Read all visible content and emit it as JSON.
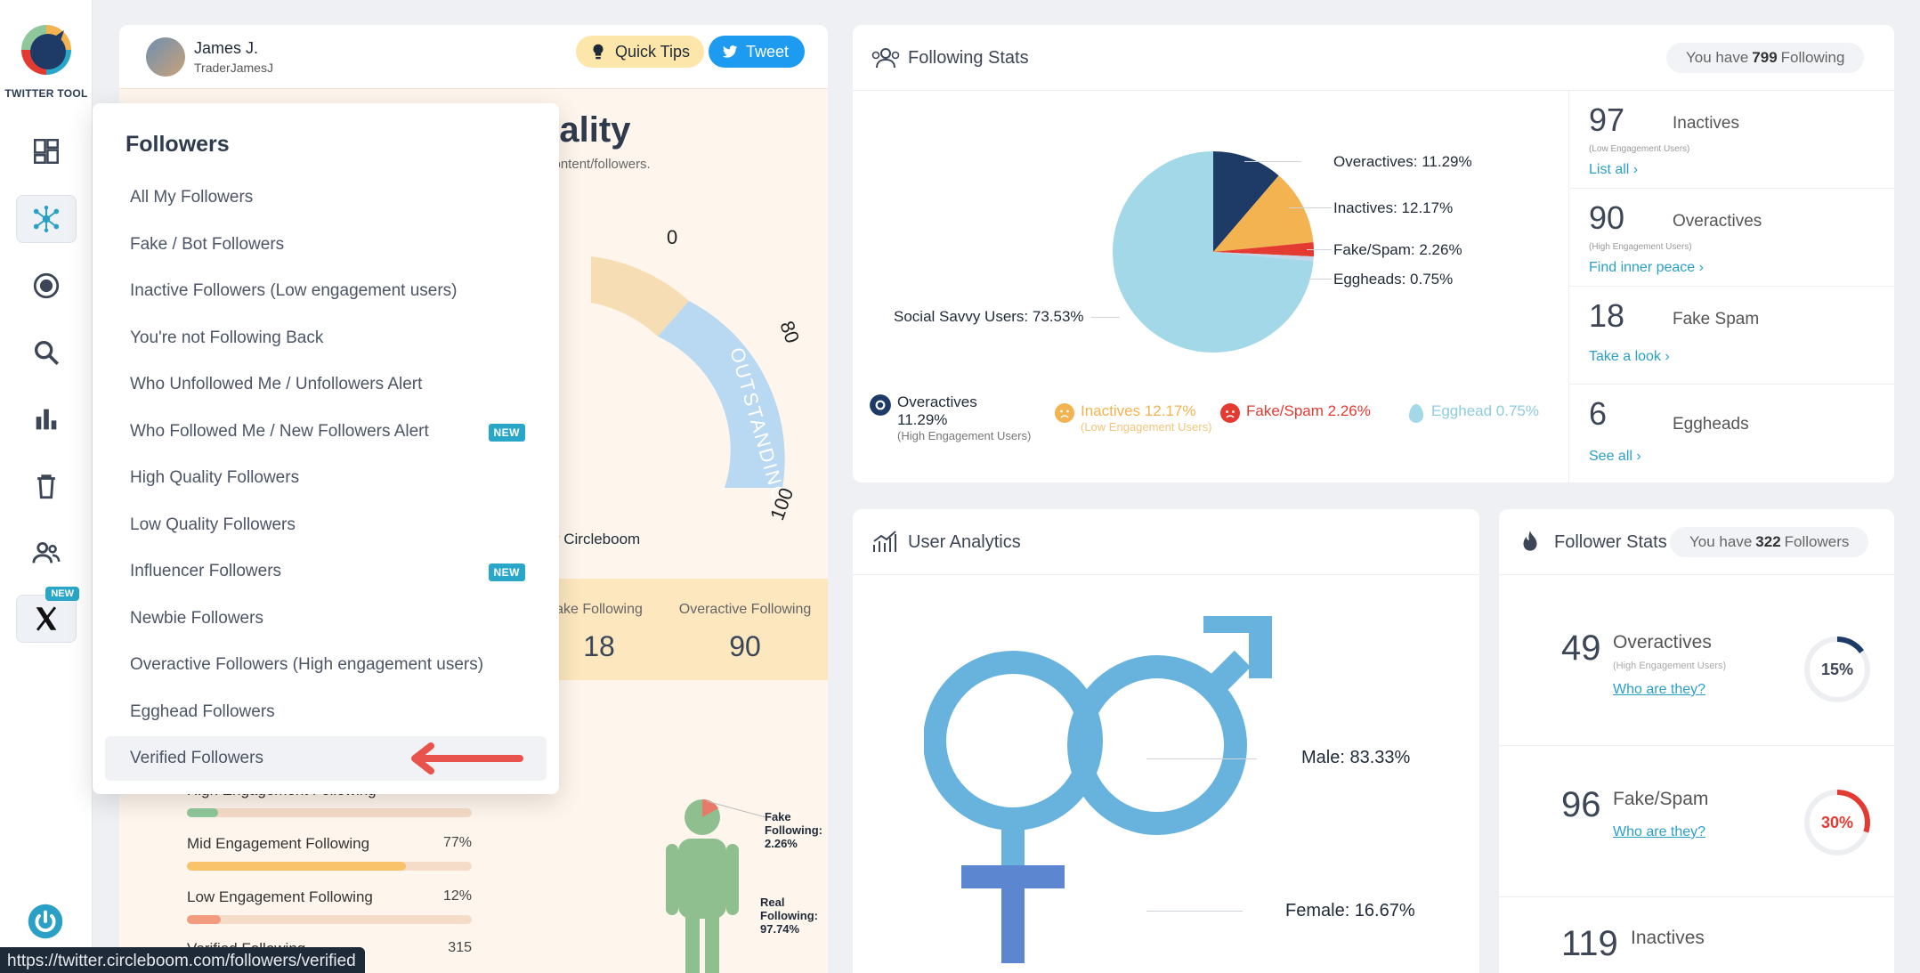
{
  "app": {
    "logo_text": "TWITTER TOOL",
    "new_badge": "NEW",
    "status_url": "https://twitter.circleboom.com/followers/verified"
  },
  "user": {
    "name": "James J.",
    "handle": "TraderJamesJ"
  },
  "header_buttons": {
    "quick_tips": "Quick Tips",
    "tweet": "Tweet"
  },
  "quality": {
    "title": "uality",
    "subtitle": "content/followers.",
    "gauge_label": "OUTSTANDING",
    "gauge_ticks": [
      "0",
      "80",
      "100"
    ],
    "credit": "y Circleboom"
  },
  "following_strip": [
    {
      "label": "ake Following",
      "value": "18"
    },
    {
      "label": "Overactive Following",
      "value": "90"
    }
  ],
  "engagement_bars": [
    {
      "label": "High Engagement Following",
      "value": "11%",
      "fraction": 0.11,
      "color": "#8fc79a"
    },
    {
      "label": "Mid Engagement Following",
      "value": "77%",
      "fraction": 0.77,
      "color": "#f8c36a"
    },
    {
      "label": "Low Engagement Following",
      "value": "12%",
      "fraction": 0.12,
      "color": "#f29b7e"
    },
    {
      "label": "Verified Following",
      "value": "315",
      "fraction": 0.0,
      "color": "#7fb2e6"
    }
  ],
  "person_labels": {
    "fake": "Fake Following: 2.26%",
    "real": "Real Following: 97.74%"
  },
  "dropdown": {
    "title": "Followers",
    "items": [
      {
        "label": "All My Followers",
        "new": false
      },
      {
        "label": "Fake / Bot Followers",
        "new": false
      },
      {
        "label": "Inactive Followers (Low engagement users)",
        "new": false
      },
      {
        "label": "You're not Following Back",
        "new": false
      },
      {
        "label": "Who Unfollowed Me / Unfollowers Alert",
        "new": false
      },
      {
        "label": "Who Followed Me / New Followers Alert",
        "new": true
      },
      {
        "label": "High Quality Followers",
        "new": false
      },
      {
        "label": "Low Quality Followers",
        "new": false
      },
      {
        "label": "Influencer Followers",
        "new": true
      },
      {
        "label": "Newbie Followers",
        "new": false
      },
      {
        "label": "Overactive Followers (High engagement users)",
        "new": false
      },
      {
        "label": "Egghead Followers",
        "new": false
      },
      {
        "label": "Verified Followers",
        "new": false
      }
    ],
    "new_label": "NEW"
  },
  "following_stats": {
    "title": "Following Stats",
    "pill_prefix": "You have",
    "pill_count": "799",
    "pill_suffix": "Following",
    "pie_labels": {
      "overactives": "Overactives: 11.29%",
      "inactives": "Inactives: 12.17%",
      "fakespam": "Fake/Spam: 2.26%",
      "eggheads": "Eggheads: 0.75%",
      "social": "Social Savvy Users: 73.53%"
    },
    "legend": {
      "overactives": "Overactives",
      "overactives_pct": "11.29%",
      "overactives_sub": "(High Engagement Users)",
      "inactives": "Inactives 12.17%",
      "inactives_sub": "(Low Engagement Users)",
      "fakespam": "Fake/Spam 2.26%",
      "egghead": "Egghead 0.75%"
    },
    "colors": {
      "overactives": "#1e3a66",
      "inactives": "#f2b350",
      "fakespam": "#e33b32",
      "eggheads": "#c5d6ea",
      "social": "#a3d8e8"
    },
    "rows": [
      {
        "num": "97",
        "name": "Inactives",
        "sub": "(Low Engagement Users)",
        "link": "List all ›"
      },
      {
        "num": "90",
        "name": "Overactives",
        "sub": "(High Engagement Users)",
        "link": "Find inner peace ›"
      },
      {
        "num": "18",
        "name": "Fake Spam",
        "sub": "",
        "link": "Take a look ›"
      },
      {
        "num": "6",
        "name": "Eggheads",
        "sub": "",
        "link": "See all ›"
      }
    ]
  },
  "user_analytics": {
    "title": "User Analytics",
    "male": "Male: 83.33%",
    "female": "Female: 16.67%"
  },
  "follower_stats": {
    "title": "Follower Stats",
    "pill_prefix": "You have",
    "pill_count": "322",
    "pill_suffix": "Followers",
    "rows": [
      {
        "num": "49",
        "name": "Overactives",
        "sub": "(High Engagement Users)",
        "link": "Who are they?",
        "pct": "15%",
        "fraction": 0.15,
        "color": "#1e3a66"
      },
      {
        "num": "96",
        "name": "Fake/Spam",
        "sub": "",
        "link": "Who are they?",
        "pct": "30%",
        "fraction": 0.3,
        "color": "#e33b32"
      },
      {
        "num": "119",
        "name": "Inactives",
        "sub": "",
        "link": "",
        "pct": "",
        "fraction": 0.0,
        "color": "#2aa0c6"
      }
    ]
  }
}
